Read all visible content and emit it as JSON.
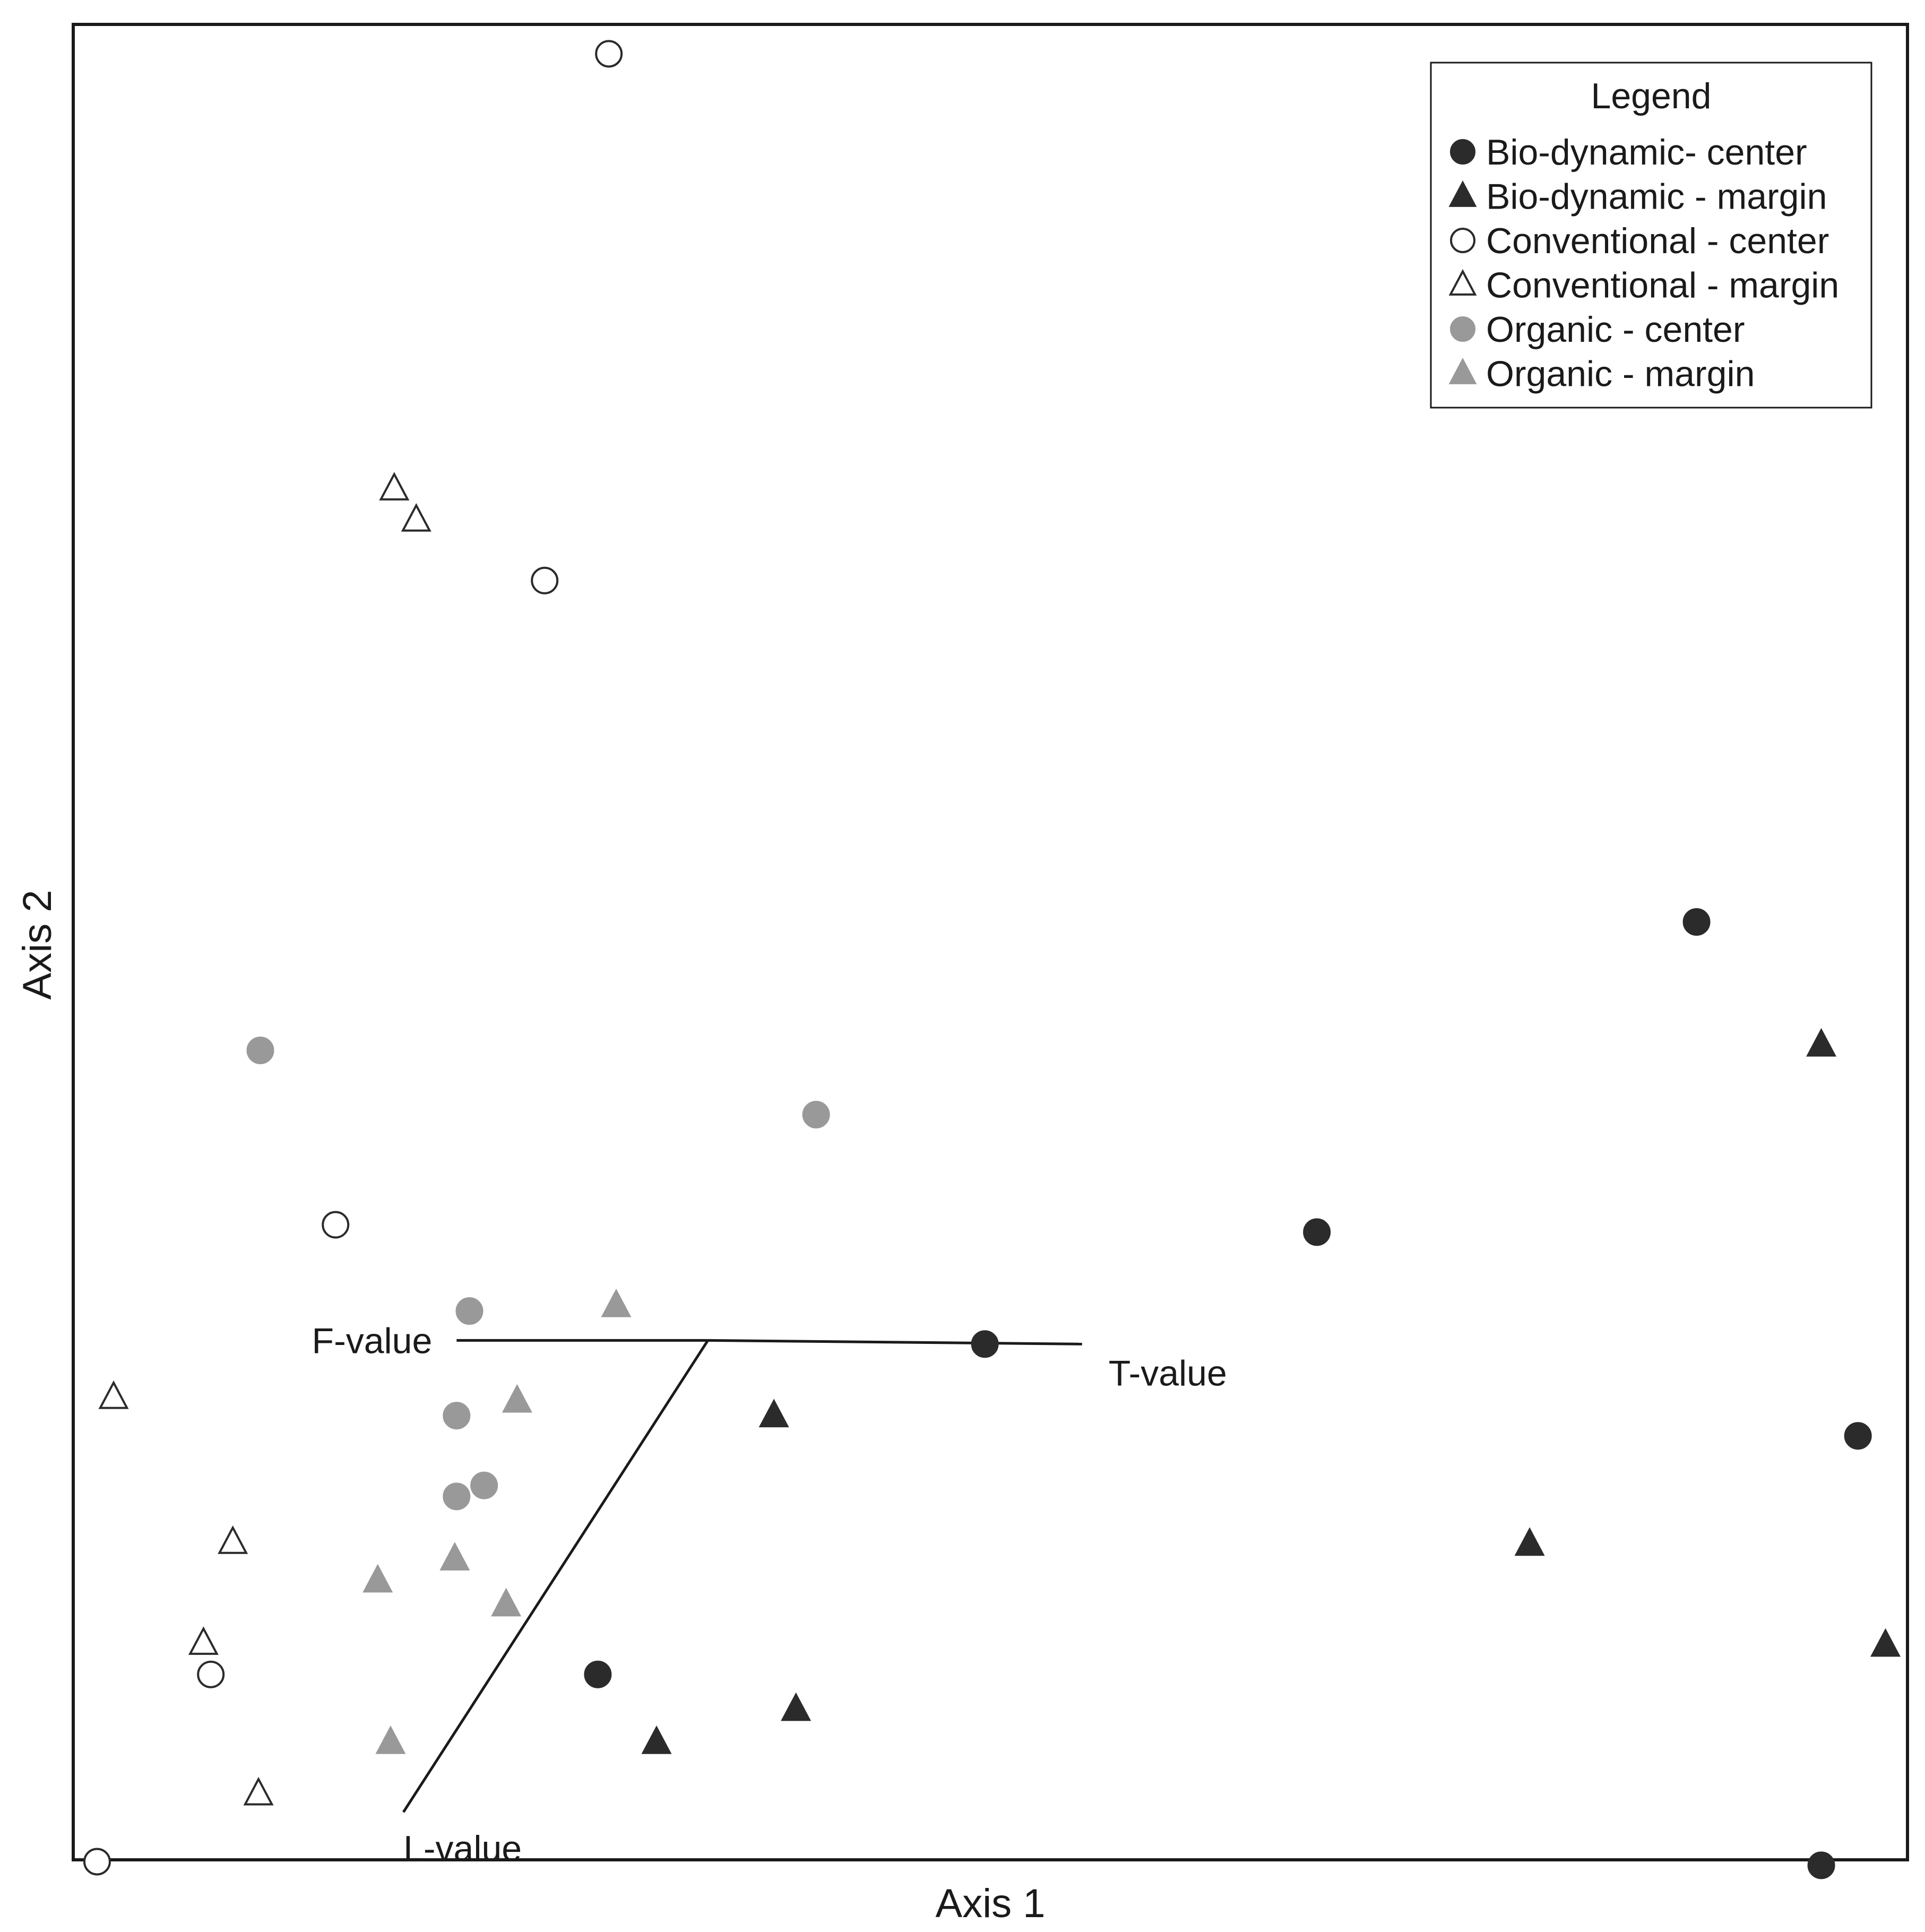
{
  "chart_data": {
    "type": "scatter",
    "title": "",
    "xlabel": "Axis 1",
    "ylabel": "Axis 2",
    "xlim": [
      0,
      100
    ],
    "ylim": [
      0,
      100
    ],
    "grid": false,
    "legend": {
      "title": "Legend",
      "placement": "top-right"
    },
    "series": [
      {
        "name": "Bio-dynamic- center",
        "marker": "circle",
        "fill": "#2b2b2b",
        "stroke": "#2b2b2b",
        "points": [
          {
            "x": 88.5,
            "y": 51.1
          },
          {
            "x": 67.8,
            "y": 34.2
          },
          {
            "x": 49.7,
            "y": 28.1
          },
          {
            "x": 97.3,
            "y": 23.1
          },
          {
            "x": 28.6,
            "y": 10.1
          },
          {
            "x": 95.3,
            "y": -0.3
          }
        ]
      },
      {
        "name": "Bio-dynamic - margin",
        "marker": "triangle",
        "fill": "#2b2b2b",
        "stroke": "#2b2b2b",
        "points": [
          {
            "x": 95.3,
            "y": 44.4
          },
          {
            "x": 38.2,
            "y": 24.2
          },
          {
            "x": 79.4,
            "y": 17.2
          },
          {
            "x": 98.8,
            "y": 11.7
          },
          {
            "x": 39.4,
            "y": 8.2
          },
          {
            "x": 31.8,
            "y": 6.4
          }
        ]
      },
      {
        "name": "Conventional - center",
        "marker": "circle",
        "fill": "#ffffff",
        "stroke": "#2b2b2b",
        "points": [
          {
            "x": 29.2,
            "y": 98.4
          },
          {
            "x": 25.7,
            "y": 69.7
          },
          {
            "x": 14.3,
            "y": 34.6
          },
          {
            "x": 7.5,
            "y": 10.1
          },
          {
            "x": 1.3,
            "y": -0.1
          }
        ]
      },
      {
        "name": "Conventional - margin",
        "marker": "triangle",
        "fill": "#ffffff",
        "stroke": "#2b2b2b",
        "points": [
          {
            "x": 17.5,
            "y": 74.7
          },
          {
            "x": 18.7,
            "y": 73.0
          },
          {
            "x": 2.2,
            "y": 25.2
          },
          {
            "x": 8.7,
            "y": 17.3
          },
          {
            "x": 7.1,
            "y": 11.8
          },
          {
            "x": 10.1,
            "y": 3.6
          }
        ]
      },
      {
        "name": "Organic - center",
        "marker": "circle",
        "fill": "#999999",
        "stroke": "#999999",
        "points": [
          {
            "x": 10.2,
            "y": 44.1
          },
          {
            "x": 40.5,
            "y": 40.6
          },
          {
            "x": 21.6,
            "y": 29.9
          },
          {
            "x": 20.9,
            "y": 24.2
          },
          {
            "x": 22.4,
            "y": 20.4
          },
          {
            "x": 20.9,
            "y": 19.8
          }
        ]
      },
      {
        "name": "Organic - margin",
        "marker": "triangle",
        "fill": "#999999",
        "stroke": "#999999",
        "points": [
          {
            "x": 29.6,
            "y": 30.2
          },
          {
            "x": 24.2,
            "y": 25.0
          },
          {
            "x": 20.8,
            "y": 16.4
          },
          {
            "x": 16.6,
            "y": 15.2
          },
          {
            "x": 23.6,
            "y": 13.9
          },
          {
            "x": 17.3,
            "y": 6.4
          }
        ]
      }
    ],
    "vectors": {
      "origin": {
        "x": 34.6,
        "y": 28.3
      },
      "items": [
        {
          "label": "F-value",
          "end": {
            "x": 20.9,
            "y": 28.3
          }
        },
        {
          "label": "T-value",
          "end": {
            "x": 55.0,
            "y": 28.1
          }
        },
        {
          "label": "L-value",
          "end": {
            "x": 18.0,
            "y": 2.6
          }
        }
      ]
    }
  }
}
